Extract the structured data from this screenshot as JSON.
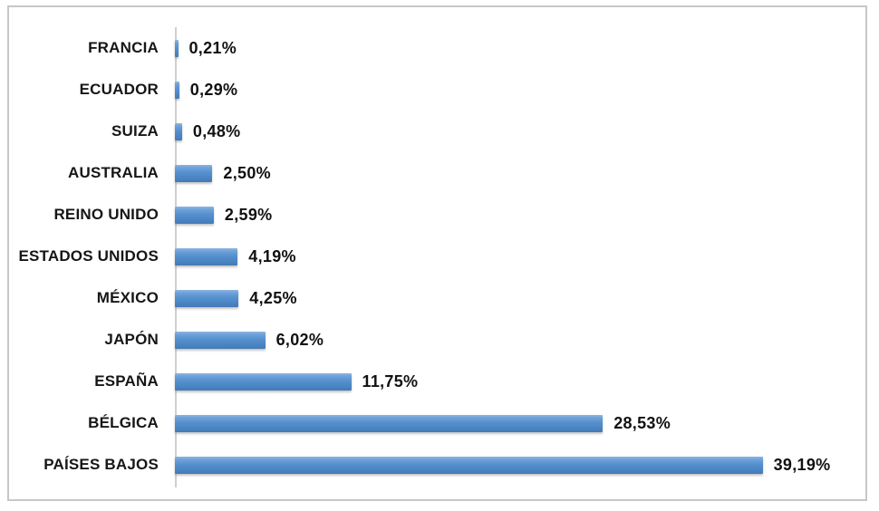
{
  "chart_data": {
    "type": "bar",
    "orientation": "horizontal",
    "title": "",
    "xlabel": "",
    "ylabel": "",
    "categories": [
      "FRANCIA",
      "ECUADOR",
      "SUIZA",
      "AUSTRALIA",
      "REINO UNIDO",
      "ESTADOS UNIDOS",
      "MÉXICO",
      "JAPÓN",
      "ESPAÑA",
      "BÉLGICA",
      "PAÍSES BAJOS"
    ],
    "values": [
      0.21,
      0.29,
      0.48,
      2.5,
      2.59,
      4.19,
      4.25,
      6.02,
      11.75,
      28.53,
      39.19
    ],
    "value_labels": [
      "0,21%",
      "0,29%",
      "0,48%",
      "2,50%",
      "2,59%",
      "4,19%",
      "4,25%",
      "6,02%",
      "11,75%",
      "28,53%",
      "39,19%"
    ],
    "xlim": [
      0,
      40
    ],
    "grid": false,
    "legend": null,
    "data_labels_visible": true,
    "decimal_separator": ",",
    "colors": {
      "bar_top": "#8fb5e1",
      "bar_mid": "#5590ce",
      "bar_bottom": "#4478b2",
      "category_label": "#161616",
      "value_label": "#111111",
      "axis_line": "#d0cfce",
      "frame_border": "#c9c7c5",
      "background": "#ffffff"
    }
  }
}
